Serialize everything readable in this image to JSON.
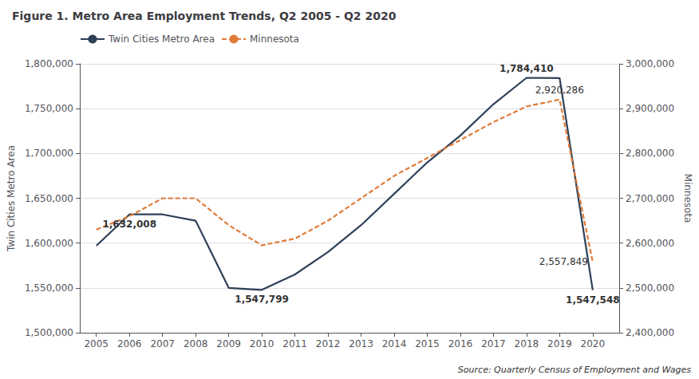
{
  "chart_data": {
    "type": "line",
    "title": "Figure 1. Metro Area Employment Trends, Q2 2005 - Q2 2020",
    "source": "Source: Quarterly Census of Employment and Wages",
    "xlabel": null,
    "ylabel": "Twin Cities Metro Area",
    "y2label": "Minnesota",
    "x": [
      2005,
      2006,
      2007,
      2008,
      2009,
      2010,
      2011,
      2012,
      2013,
      2014,
      2015,
      2016,
      2017,
      2018,
      2019,
      2020
    ],
    "series": [
      {
        "name": "Twin Cities Metro Area",
        "color": "#2E4057",
        "line_style": "solid",
        "values": [
          1597000,
          1632008,
          1632008,
          1625000,
          1550000,
          1547799,
          1565000,
          1590000,
          1620000,
          1655000,
          1690000,
          1720000,
          1755000,
          1784410,
          1784000,
          1547548
        ]
      },
      {
        "name": "Minnesota",
        "color": "#E07B39",
        "line_style": "dashed",
        "axis": "y2",
        "values": [
          2630000,
          2660000,
          2700000,
          2700000,
          2640000,
          2595000,
          2610000,
          2650000,
          2700000,
          2750000,
          2790000,
          2830000,
          2870000,
          2905000,
          2920286,
          2557849
        ]
      }
    ],
    "xlim": [
      2004.5,
      2020.8
    ],
    "xticks": [
      2005,
      2006,
      2007,
      2008,
      2009,
      2010,
      2011,
      2012,
      2013,
      2014,
      2015,
      2016,
      2017,
      2018,
      2019,
      2020
    ],
    "ylim": [
      1500000,
      1800000
    ],
    "yticks": [
      {
        "value": 1500000,
        "label": "1,500,000"
      },
      {
        "value": 1550000,
        "label": "1,550,000"
      },
      {
        "value": 1600000,
        "label": "1,600,000"
      },
      {
        "value": 1650000,
        "label": "1,650,000"
      },
      {
        "value": 1700000,
        "label": "1,700,000"
      },
      {
        "value": 1750000,
        "label": "1,750,000"
      },
      {
        "value": 1800000,
        "label": "1,800,000"
      }
    ],
    "y2lim": [
      2400000,
      3000000
    ],
    "y2ticks": [
      {
        "value": 2400000,
        "label": "2,400,000"
      },
      {
        "value": 2500000,
        "label": "2,500,000"
      },
      {
        "value": 2600000,
        "label": "2,600,000"
      },
      {
        "value": 2700000,
        "label": "2,700,000"
      },
      {
        "value": 2800000,
        "label": "2,800,000"
      },
      {
        "value": 2900000,
        "label": "2,900,000"
      },
      {
        "value": 3000000,
        "label": "3,000,000"
      }
    ],
    "grid": true,
    "legend": "upper left",
    "annotations": [
      {
        "text": "1,632,008",
        "x": 2006,
        "y": 1632008
      },
      {
        "text": "1,547,799",
        "x": 2010,
        "y": 1547799
      },
      {
        "text": "1,784,410",
        "x": 2018,
        "y": 1784410
      },
      {
        "text": "1,547,548",
        "x": 2020,
        "y": 1547548
      },
      {
        "text": "2,920,286",
        "x": 2019,
        "y": 2920286,
        "axis": "y2"
      },
      {
        "text": "2,557,849",
        "x": 2020,
        "y": 2557849,
        "axis": "y2"
      }
    ]
  }
}
